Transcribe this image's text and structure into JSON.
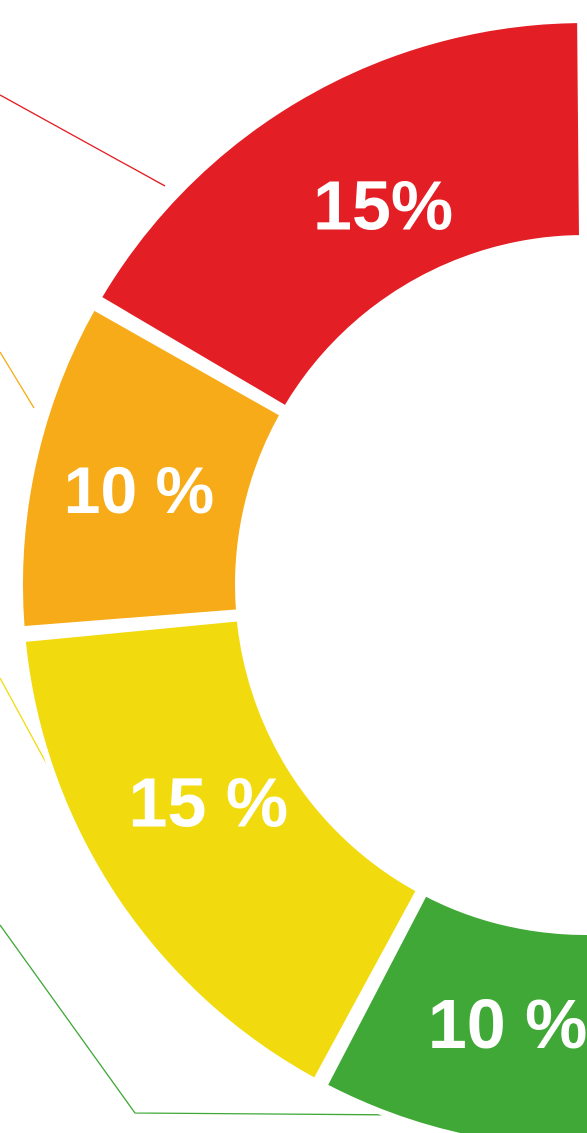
{
  "chart_data": {
    "type": "pie",
    "style": "donut",
    "crop": "right-half-visible",
    "slices": [
      {
        "label": "15%",
        "value": 15,
        "color": "#e31e24"
      },
      {
        "label": "10 %",
        "value": 10,
        "color": "#f7ab18"
      },
      {
        "label": "15 %",
        "value": 15,
        "color": "#f1da0e"
      },
      {
        "label": "10 %",
        "value": 10,
        "color": "#40a836"
      },
      {
        "label": "",
        "value": null,
        "color": "#0db9d3"
      }
    ],
    "leader_line_colors": [
      "#e31e24",
      "#f7ab18",
      "#f1da0e",
      "#40a836"
    ]
  }
}
